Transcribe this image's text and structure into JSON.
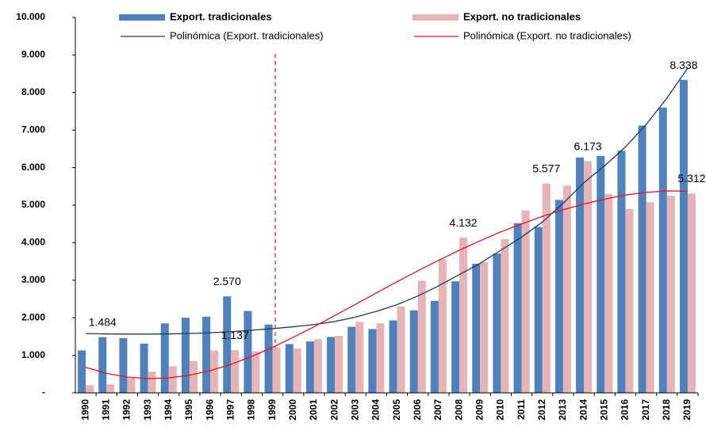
{
  "chart_data": {
    "type": "bar",
    "categories": [
      "1990",
      "1991",
      "1992",
      "1993",
      "1994",
      "1995",
      "1996",
      "1997",
      "1998",
      "1999",
      "2000",
      "2001",
      "2002",
      "2003",
      "2004",
      "2005",
      "2006",
      "2007",
      "2008",
      "2009",
      "2010",
      "2011",
      "2012",
      "2013",
      "2014",
      "2015",
      "2016",
      "2017",
      "2018",
      "2019"
    ],
    "series": [
      {
        "name": "Export. tradicionales",
        "type": "bar",
        "color": "#4f81bd",
        "values": [
          1130,
          1484,
          1460,
          1310,
          1850,
          2000,
          2030,
          2570,
          2180,
          1820,
          1300,
          1370,
          1490,
          1760,
          1700,
          1930,
          2200,
          2450,
          2970,
          3440,
          3710,
          4520,
          4420,
          5140,
          6270,
          6310,
          6450,
          7120,
          7600,
          8338
        ],
        "value_labels": [
          null,
          "1.484",
          null,
          null,
          null,
          null,
          null,
          "2.570",
          null,
          null,
          null,
          null,
          null,
          null,
          null,
          null,
          null,
          null,
          null,
          null,
          null,
          null,
          null,
          null,
          null,
          null,
          null,
          null,
          null,
          "8.338"
        ]
      },
      {
        "name": "Export. no tradicionales",
        "type": "bar",
        "color": "#e6b4b4",
        "values": [
          200,
          230,
          390,
          560,
          710,
          850,
          1130,
          1137,
          1100,
          1200,
          1180,
          1430,
          1520,
          1890,
          1850,
          2300,
          2990,
          3560,
          4132,
          3480,
          4100,
          4860,
          5577,
          5520,
          6173,
          5300,
          4900,
          5080,
          5250,
          5312
        ],
        "value_labels": [
          null,
          null,
          null,
          null,
          null,
          null,
          null,
          "1.137",
          null,
          null,
          null,
          null,
          null,
          null,
          null,
          null,
          null,
          null,
          "4.132",
          null,
          null,
          null,
          "5.577",
          null,
          "6.173",
          null,
          null,
          null,
          null,
          "5.312"
        ]
      },
      {
        "name": "Polinómica (Export. tradicionales)",
        "type": "line",
        "color": "#1f3864",
        "values": [
          1580,
          1570,
          1565,
          1565,
          1570,
          1580,
          1600,
          1630,
          1670,
          1710,
          1760,
          1820,
          1900,
          2020,
          2170,
          2350,
          2580,
          2850,
          3150,
          3450,
          3800,
          4150,
          4550,
          5050,
          5600,
          6050,
          6550,
          7150,
          7850,
          8650
        ]
      },
      {
        "name": "Polinómica (Export. no tradicionales)",
        "type": "line",
        "color": "#e8141b",
        "values": [
          680,
          520,
          420,
          380,
          400,
          470,
          590,
          760,
          970,
          1210,
          1480,
          1760,
          2060,
          2360,
          2660,
          2960,
          3250,
          3530,
          3800,
          4050,
          4290,
          4500,
          4700,
          4880,
          5030,
          5160,
          5270,
          5340,
          5380,
          5370
        ]
      }
    ],
    "ylim": [
      0,
      10000
    ],
    "yticks": [
      {
        "value": 0,
        "label": "-"
      },
      {
        "value": 1000,
        "label": "1.000"
      },
      {
        "value": 2000,
        "label": "2.000"
      },
      {
        "value": 3000,
        "label": "3.000"
      },
      {
        "value": 4000,
        "label": "4.000"
      },
      {
        "value": 5000,
        "label": "5.000"
      },
      {
        "value": 6000,
        "label": "6.000"
      },
      {
        "value": 7000,
        "label": "7.000"
      },
      {
        "value": 8000,
        "label": "8.000"
      },
      {
        "value": 9000,
        "label": "9.000"
      },
      {
        "value": 10000,
        "label": "10.000"
      }
    ],
    "grid": false
  }
}
